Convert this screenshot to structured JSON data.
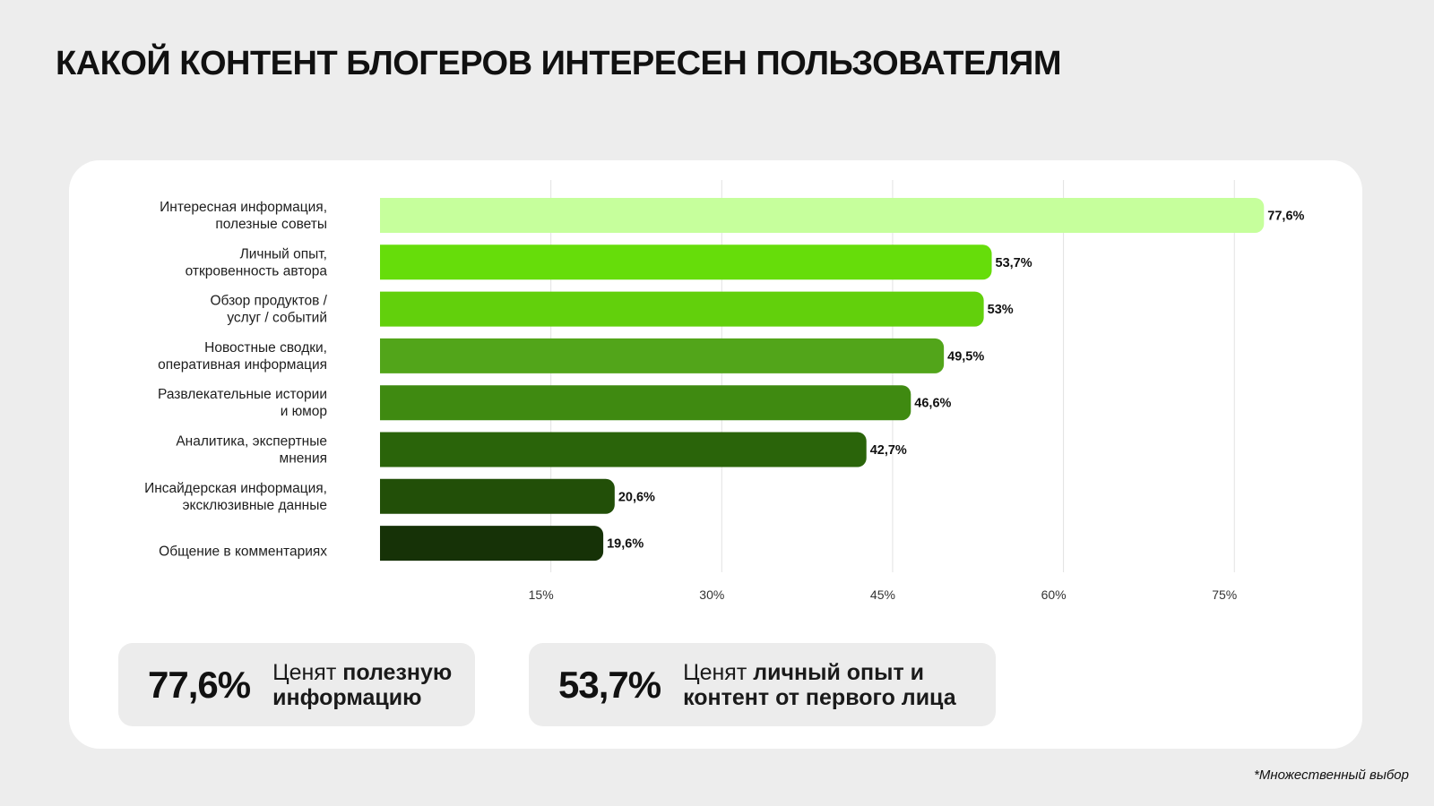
{
  "title": "КАКОЙ КОНТЕНТ БЛОГЕРОВ ИНТЕРЕСЕН ПОЛЬЗОВАТЕЛЯМ",
  "footnote": "*Множественный выбор",
  "colors": {
    "bars": [
      "#c6ff9c",
      "#66dd0a",
      "#62d00c",
      "#52a51a",
      "#3f8a11",
      "#2a640a",
      "#224f08",
      "#163207"
    ],
    "card_bg": "#ffffff",
    "page_bg": "#ededed",
    "grid": "#e2e2e2"
  },
  "chart_data": {
    "type": "bar",
    "orientation": "horizontal",
    "categories": [
      [
        "Интересная информация,",
        "полезные советы"
      ],
      [
        "Личный опыт,",
        "откровенность автора"
      ],
      [
        "Обзор продуктов /",
        "услуг / событий"
      ],
      [
        "Новостные сводки,",
        "оперативная информация"
      ],
      [
        "Развлекательные истории",
        "и юмор"
      ],
      [
        "Аналитика, экспертные",
        "мнения"
      ],
      [
        "Инсайдерская информация,",
        "эксклюзивные данные"
      ],
      [
        "Общение в комментариях"
      ]
    ],
    "values": [
      77.6,
      53.7,
      53,
      49.5,
      46.6,
      42.7,
      20.6,
      19.6
    ],
    "value_labels": [
      "77,6%",
      "53,7%",
      "53%",
      "49,5%",
      "46,6%",
      "42,7%",
      "20,6%",
      "19,6%"
    ],
    "ticks": [
      15,
      30,
      45,
      60,
      75
    ],
    "tick_labels": [
      "15%",
      "30%",
      "45%",
      "60%",
      "75%"
    ],
    "xlim": [
      0,
      80
    ],
    "grid": true
  },
  "stats": [
    {
      "value": "77,6%",
      "text_plain": "Ценят ",
      "text_bold": "полезную информацию"
    },
    {
      "value": "53,7%",
      "text_plain": "Ценят ",
      "text_bold": "личный опыт и контент от первого лица"
    }
  ]
}
